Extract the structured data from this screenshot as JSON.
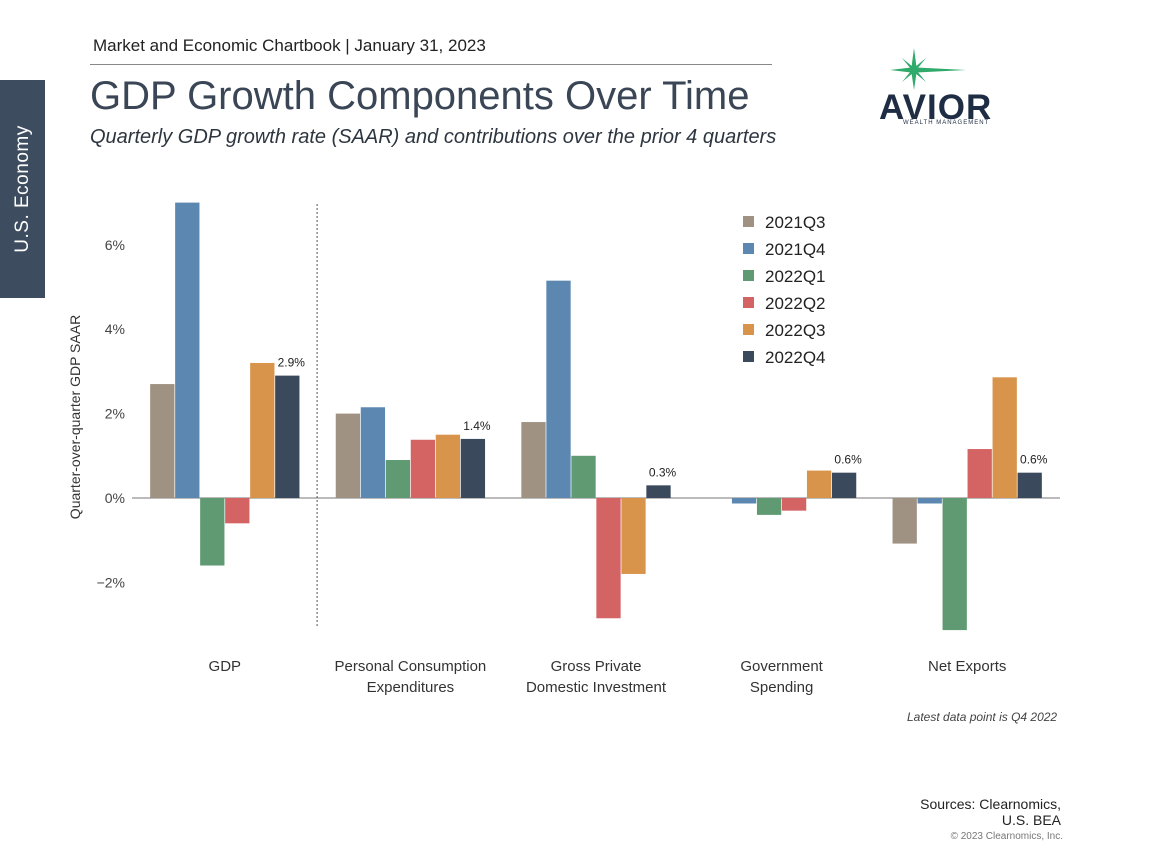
{
  "side_tab": "U.S. Economy",
  "header": {
    "chartbook": "Market and Economic Chartbook | January 31, 2023",
    "title": "GDP Growth Components Over Time",
    "subtitle": "Quarterly GDP growth rate (SAAR) and contributions over the prior 4 quarters"
  },
  "logo": {
    "name": "AVIOR",
    "sub": "WEALTH MANAGEMENT"
  },
  "colors": {
    "2021Q3": "#a09283",
    "2021Q4": "#5b87b0",
    "2022Q1": "#5f9a72",
    "2022Q2": "#d46464",
    "2022Q3": "#d9944c",
    "2022Q4": "#3a4a5c"
  },
  "chart_data": {
    "type": "bar",
    "title": "",
    "ylabel": "Quarter-over-quarter GDP SAAR",
    "ylim": [
      -3.0,
      7.0
    ],
    "yticks": [
      6,
      4,
      2,
      0,
      -2
    ],
    "ytick_labels": [
      "6%",
      "4%",
      "2%",
      "0%",
      "−2%"
    ],
    "categories": [
      "GDP",
      "Personal Consumption Expenditures",
      "Gross Private Domestic Investment",
      "Government Spending",
      "Net Exports"
    ],
    "category_labels": [
      [
        "GDP"
      ],
      [
        "Personal Consumption",
        "Expenditures"
      ],
      [
        "Gross Private",
        "Domestic Investment"
      ],
      [
        "Government",
        "Spending"
      ],
      [
        "Net Exports"
      ]
    ],
    "series": [
      {
        "name": "2021Q3",
        "values": [
          2.7,
          2.0,
          1.8,
          0.0,
          -1.08
        ]
      },
      {
        "name": "2021Q4",
        "values": [
          7.0,
          2.15,
          5.15,
          -0.13,
          -0.13
        ]
      },
      {
        "name": "2022Q1",
        "values": [
          -1.6,
          0.9,
          1.0,
          -0.4,
          -3.13
        ]
      },
      {
        "name": "2022Q2",
        "values": [
          -0.6,
          1.38,
          -2.85,
          -0.3,
          1.16
        ]
      },
      {
        "name": "2022Q3",
        "values": [
          3.2,
          1.5,
          -1.8,
          0.65,
          2.86
        ]
      },
      {
        "name": "2022Q4",
        "values": [
          2.9,
          1.4,
          0.3,
          0.6,
          0.6
        ]
      }
    ],
    "data_labels": [
      "2.9%",
      "1.4%",
      "0.3%",
      "0.6%",
      "0.6%"
    ],
    "legend": {
      "position": "top-center"
    },
    "grid": false
  },
  "note": "Latest data point is Q4 2022",
  "sources": {
    "line1": "Sources: Clearnomics,",
    "line2": "U.S. BEA"
  },
  "copyright": "© 2023 Clearnomics, Inc."
}
